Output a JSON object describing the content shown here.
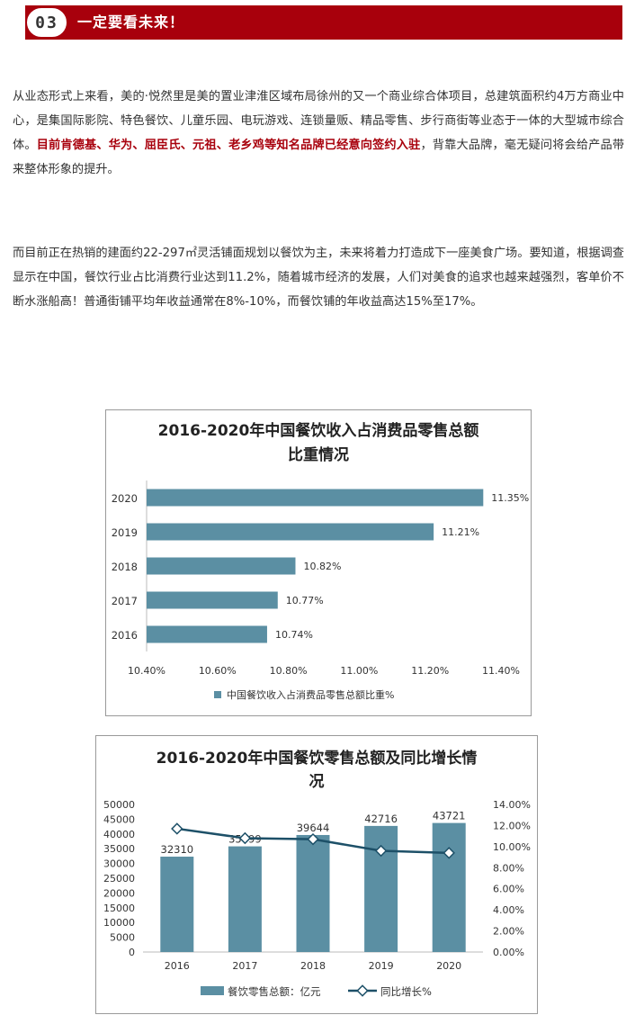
{
  "header": {
    "number": "03",
    "title": "一定要看未来！"
  },
  "paragraph1": {
    "text_a": "从业态形式上来看，美的·悦然里是美的置业津淮区域布局徐州的又一个商业综合体项目，总建筑面积约4万方商业中心，是集国际影院、特色餐饮、儿童乐园、电玩游戏、连锁量贩、精品零售、步行商街等业态于一体的大型城市综合体。",
    "highlight": "目前肯德基、华为、屈臣氏、元祖、老乡鸡等知名品牌已经意向签约入驻",
    "text_b": "，背靠大品牌，毫无疑问将会给产品带来整体形象的提升。"
  },
  "paragraph2": {
    "text": "而目前正在热销的建面约22-297㎡灵活铺面规划以餐饮为主，未来将着力打造成下一座美食广场。要知道，根据调查显示在中国，餐饮行业占比消费行业达到11.2%，随着城市经济的发展，人们对美食的追求也越来越强烈，客单价不断水涨船高！普通街铺平均年收益通常在8%-10%，而餐饮铺的年收益高达15%至17%。"
  },
  "colors": {
    "accent": "#a8000c",
    "bar": "#5b8fa3",
    "line": "#1d5068"
  },
  "chart_data": [
    {
      "type": "bar",
      "orientation": "horizontal",
      "title_line1": "2016-2020年中国餐饮收入占消费品零售总额",
      "title_line2": "比重情况",
      "categories": [
        "2020",
        "2019",
        "2018",
        "2017",
        "2016"
      ],
      "values": [
        11.35,
        11.21,
        10.82,
        10.77,
        10.74
      ],
      "value_labels": [
        "11.35%",
        "11.21%",
        "10.82%",
        "10.77%",
        "10.74%"
      ],
      "xlim": [
        10.4,
        11.4
      ],
      "ticks": [
        10.4,
        10.6,
        10.8,
        11.0,
        11.2,
        11.4
      ],
      "tick_labels": [
        "10.40%",
        "10.60%",
        "10.80%",
        "11.00%",
        "11.20%",
        "11.40%"
      ],
      "legend": "中国餐饮收入占消费品零售总额比重%",
      "legend_position": "bottom",
      "grid": false
    },
    {
      "type": "bar+line",
      "title_line1": "2016-2020年中国餐饮零售总额及同比增长情",
      "title_line2": "况",
      "categories": [
        "2016",
        "2017",
        "2018",
        "2019",
        "2020"
      ],
      "series": [
        {
          "name": "餐饮零售总额：亿元",
          "type": "bar",
          "axis": "left",
          "values": [
            32310,
            35799,
            39644,
            42716,
            43721
          ],
          "labels": [
            "32310",
            "35799",
            "39644",
            "42716",
            "43721"
          ]
        },
        {
          "name": "同比增长%",
          "type": "line",
          "axis": "right",
          "values": [
            11.7,
            10.8,
            10.7,
            9.6,
            9.4
          ]
        }
      ],
      "left_ylim": [
        0,
        50000
      ],
      "left_ticks": [
        "0",
        "5000",
        "10000",
        "15000",
        "20000",
        "25000",
        "30000",
        "35000",
        "40000",
        "45000",
        "50000"
      ],
      "right_ylim": [
        0,
        14
      ],
      "right_ticks": [
        "0.00%",
        "2.00%",
        "4.00%",
        "6.00%",
        "8.00%",
        "10.00%",
        "12.00%",
        "14.00%"
      ],
      "legend_position": "bottom",
      "grid": false
    }
  ]
}
